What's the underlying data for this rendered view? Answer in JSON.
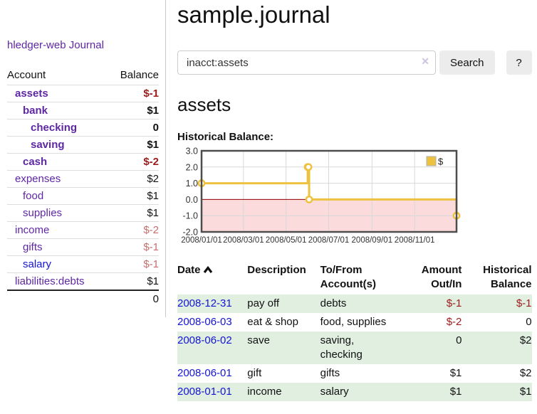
{
  "app": {
    "title": "hledger-web"
  },
  "sidebar": {
    "journal_link": "Journal",
    "table": {
      "account_header": "Account",
      "balance_header": "Balance",
      "rows": [
        {
          "name": "assets",
          "balance": "$-1",
          "indent": 1,
          "bold": true,
          "balance_style": "negative-strong"
        },
        {
          "name": "bank",
          "balance": "$1",
          "indent": 2,
          "bold": true,
          "balance_style": "normal-strong"
        },
        {
          "name": "checking",
          "balance": "0",
          "indent": 3,
          "bold": true,
          "balance_style": "normal-strong"
        },
        {
          "name": "saving",
          "balance": "$1",
          "indent": 3,
          "bold": true,
          "balance_style": "normal-strong"
        },
        {
          "name": "cash",
          "balance": "$-2",
          "indent": 2,
          "bold": true,
          "balance_style": "negative-strong"
        },
        {
          "name": "expenses",
          "balance": "$2",
          "indent": 1,
          "bold": false,
          "balance_style": "normal"
        },
        {
          "name": "food",
          "balance": "$1",
          "indent": 2,
          "bold": false,
          "balance_style": "normal"
        },
        {
          "name": "supplies",
          "balance": "$1",
          "indent": 2,
          "bold": false,
          "balance_style": "normal"
        },
        {
          "name": "income",
          "balance": "$-2",
          "indent": 1,
          "bold": false,
          "balance_style": "negative-soft"
        },
        {
          "name": "gifts",
          "balance": "$-1",
          "indent": 2,
          "bold": false,
          "balance_style": "negative-soft"
        },
        {
          "name": "salary",
          "balance": "$-1",
          "indent": 2,
          "bold": false,
          "balance_style": "negative-soft",
          "link_style": "unvisited"
        },
        {
          "name": "liabilities:debts",
          "balance": "$1",
          "indent": 1,
          "bold": false,
          "balance_style": "normal"
        }
      ],
      "total": "0"
    }
  },
  "header": {
    "title": "sample.journal"
  },
  "search": {
    "value": "inacct:assets",
    "clear_icon": "✕",
    "button_label": "Search",
    "help_label": "?"
  },
  "account_page": {
    "title": "assets",
    "chart_label": "Historical Balance:"
  },
  "chart_data": {
    "type": "line",
    "style": "step",
    "title": "Historical Balance",
    "xlim": [
      "2008-01-01",
      "2008-12-31"
    ],
    "ylim": [
      -2,
      3
    ],
    "y_ticks": [
      3.0,
      2.0,
      1.0,
      0.0,
      -1.0,
      -2.0
    ],
    "x_ticks": [
      "2008/01/01",
      "2008/03/01",
      "2008/05/01",
      "2008/07/01",
      "2008/09/01",
      "2008/11/01"
    ],
    "grid": true,
    "legend": {
      "position": "top-right"
    },
    "series": [
      {
        "name": "$",
        "color": "#edc240",
        "points": [
          [
            "2008-01-01",
            1
          ],
          [
            "2008-06-01",
            2
          ],
          [
            "2008-06-02",
            2
          ],
          [
            "2008-06-03",
            0
          ],
          [
            "2008-12-31",
            -1
          ]
        ]
      }
    ]
  },
  "register": {
    "columns": [
      "Date",
      "Description",
      "To/From Account(s)",
      "Amount Out/In",
      "Historical Balance"
    ],
    "rows": [
      {
        "date": "2008-12-31",
        "description": "pay off",
        "accounts": "debts",
        "amount": "$-1",
        "balance": "$-1"
      },
      {
        "date": "2008-06-03",
        "description": "eat & shop",
        "accounts": "food, supplies",
        "amount": "$-2",
        "balance": "0"
      },
      {
        "date": "2008-06-02",
        "description": "save",
        "accounts": "saving, checking",
        "amount": "0",
        "balance": "$2"
      },
      {
        "date": "2008-06-01",
        "description": "gift",
        "accounts": "gifts",
        "amount": "$1",
        "balance": "$2"
      },
      {
        "date": "2008-01-01",
        "description": "income",
        "accounts": "salary",
        "amount": "$1",
        "balance": "$1"
      }
    ]
  },
  "colors": {
    "link_purple": "#5e27a3",
    "link_blue": "#1414d6",
    "negative_strong": "#9c1c1c",
    "negative_soft": "#c36f6f",
    "row_green": "#e1efe1",
    "series_gold": "#edc240",
    "chart_negative_bg": "#fbdbdb",
    "zero_line": "#9a0000",
    "grid_line": "#d8d8d8",
    "chart_border": "#4d4d4d"
  }
}
